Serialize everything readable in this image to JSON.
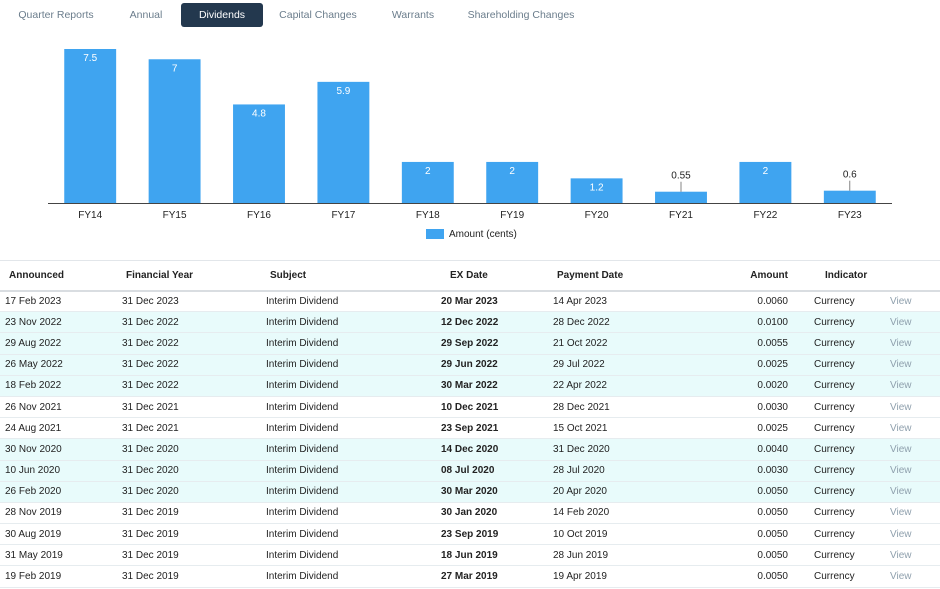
{
  "tabs": [
    {
      "label": "Quarter Reports",
      "active": false
    },
    {
      "label": "Annual",
      "active": false
    },
    {
      "label": "Dividends",
      "active": true
    },
    {
      "label": "Capital Changes",
      "active": false
    },
    {
      "label": "Warrants",
      "active": false
    },
    {
      "label": "Shareholding Changes",
      "active": false
    }
  ],
  "chart_data": {
    "type": "bar",
    "categories": [
      "FY14",
      "FY15",
      "FY16",
      "FY17",
      "FY18",
      "FY19",
      "FY20",
      "FY21",
      "FY22",
      "FY23"
    ],
    "values": [
      7.5,
      7,
      4.8,
      5.9,
      2,
      2,
      1.2,
      0.55,
      2,
      0.6
    ],
    "data_labels": [
      "7.5",
      "7",
      "4.8",
      "5.9",
      "2",
      "2",
      "1.2",
      "0.55",
      "2",
      "0.6"
    ],
    "series": [
      {
        "name": "Amount (cents)",
        "values": [
          7.5,
          7,
          4.8,
          5.9,
          2,
          2,
          1.2,
          0.55,
          2,
          0.6
        ]
      }
    ],
    "ylim": [
      0,
      7.5
    ],
    "legend": "bottom",
    "color": "#3fa4f0",
    "grid": false
  },
  "legend_label": "Amount (cents)",
  "table": {
    "headers": {
      "announced": "Announced",
      "financial_year": "Financial Year",
      "subject": "Subject",
      "ex_date": "EX Date",
      "payment_date": "Payment Date",
      "amount": "Amount",
      "indicator": "Indicator"
    },
    "rows": [
      {
        "announced": "17 Feb 2023",
        "fy": "31 Dec 2023",
        "subject": "Interim Dividend",
        "ex": "20 Mar 2023",
        "pay": "14 Apr 2023",
        "amount": "0.0060",
        "indicator": "Currency",
        "view": "View",
        "highlight": false
      },
      {
        "announced": "23 Nov 2022",
        "fy": "31 Dec 2022",
        "subject": "Interim Dividend",
        "ex": "12 Dec 2022",
        "pay": "28 Dec 2022",
        "amount": "0.0100",
        "indicator": "Currency",
        "view": "View",
        "highlight": true
      },
      {
        "announced": "29 Aug 2022",
        "fy": "31 Dec 2022",
        "subject": "Interim Dividend",
        "ex": "29 Sep 2022",
        "pay": "21 Oct 2022",
        "amount": "0.0055",
        "indicator": "Currency",
        "view": "View",
        "highlight": true
      },
      {
        "announced": "26 May 2022",
        "fy": "31 Dec 2022",
        "subject": "Interim Dividend",
        "ex": "29 Jun 2022",
        "pay": "29 Jul 2022",
        "amount": "0.0025",
        "indicator": "Currency",
        "view": "View",
        "highlight": true
      },
      {
        "announced": "18 Feb 2022",
        "fy": "31 Dec 2022",
        "subject": "Interim Dividend",
        "ex": "30 Mar 2022",
        "pay": "22 Apr 2022",
        "amount": "0.0020",
        "indicator": "Currency",
        "view": "View",
        "highlight": true
      },
      {
        "announced": "26 Nov 2021",
        "fy": "31 Dec 2021",
        "subject": "Interim Dividend",
        "ex": "10 Dec 2021",
        "pay": "28 Dec 2021",
        "amount": "0.0030",
        "indicator": "Currency",
        "view": "View",
        "highlight": false
      },
      {
        "announced": "24 Aug 2021",
        "fy": "31 Dec 2021",
        "subject": "Interim Dividend",
        "ex": "23 Sep 2021",
        "pay": "15 Oct 2021",
        "amount": "0.0025",
        "indicator": "Currency",
        "view": "View",
        "highlight": false
      },
      {
        "announced": "30 Nov 2020",
        "fy": "31 Dec 2020",
        "subject": "Interim Dividend",
        "ex": "14 Dec 2020",
        "pay": "31 Dec 2020",
        "amount": "0.0040",
        "indicator": "Currency",
        "view": "View",
        "highlight": true
      },
      {
        "announced": "10 Jun 2020",
        "fy": "31 Dec 2020",
        "subject": "Interim Dividend",
        "ex": "08 Jul 2020",
        "pay": "28 Jul 2020",
        "amount": "0.0030",
        "indicator": "Currency",
        "view": "View",
        "highlight": true
      },
      {
        "announced": "26 Feb 2020",
        "fy": "31 Dec 2020",
        "subject": "Interim Dividend",
        "ex": "30 Mar 2020",
        "pay": "20 Apr 2020",
        "amount": "0.0050",
        "indicator": "Currency",
        "view": "View",
        "highlight": true
      },
      {
        "announced": "28 Nov 2019",
        "fy": "31 Dec 2019",
        "subject": "Interim Dividend",
        "ex": "30 Jan 2020",
        "pay": "14 Feb 2020",
        "amount": "0.0050",
        "indicator": "Currency",
        "view": "View",
        "highlight": false
      },
      {
        "announced": "30 Aug 2019",
        "fy": "31 Dec 2019",
        "subject": "Interim Dividend",
        "ex": "23 Sep 2019",
        "pay": "10 Oct 2019",
        "amount": "0.0050",
        "indicator": "Currency",
        "view": "View",
        "highlight": false
      },
      {
        "announced": "31 May 2019",
        "fy": "31 Dec 2019",
        "subject": "Interim Dividend",
        "ex": "18 Jun 2019",
        "pay": "28 Jun 2019",
        "amount": "0.0050",
        "indicator": "Currency",
        "view": "View",
        "highlight": false
      },
      {
        "announced": "19 Feb 2019",
        "fy": "31 Dec 2019",
        "subject": "Interim Dividend",
        "ex": "27 Mar 2019",
        "pay": "19 Apr 2019",
        "amount": "0.0050",
        "indicator": "Currency",
        "view": "View",
        "highlight": false
      }
    ]
  }
}
